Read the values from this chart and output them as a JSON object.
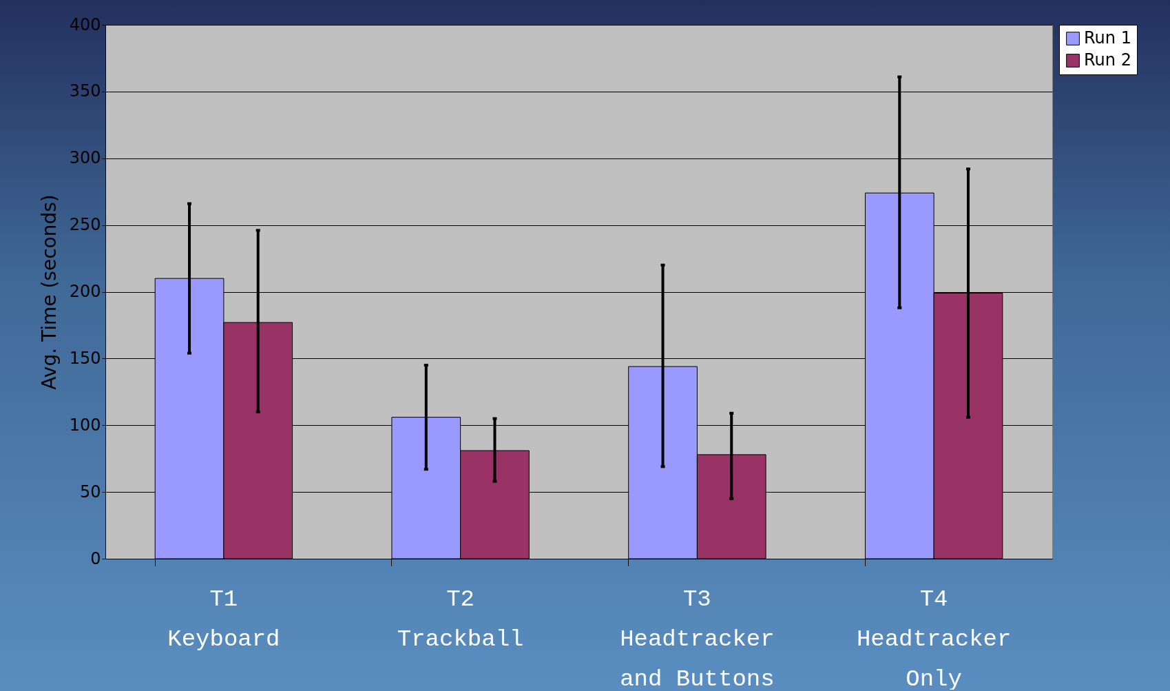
{
  "chart_data": {
    "type": "bar",
    "ylabel": "Avg. Time (seconds)",
    "categories": [
      "T1\nKeyboard",
      "T2\nTrackball",
      "T3\nHeadtracker\nand Buttons",
      "T4\nHeadtracker\nOnly"
    ],
    "series": [
      {
        "name": "Run 1",
        "color": "#9999ff",
        "values": [
          210,
          106,
          144,
          274
        ],
        "errors": [
          [
            154,
            266
          ],
          [
            67,
            145
          ],
          [
            69,
            220
          ],
          [
            188,
            361
          ]
        ]
      },
      {
        "name": "Run 2",
        "color": "#993366",
        "values": [
          177,
          81,
          78,
          199
        ],
        "errors": [
          [
            110,
            246
          ],
          [
            58,
            105
          ],
          [
            45,
            109
          ],
          [
            106,
            292
          ]
        ]
      }
    ],
    "ylim": [
      0,
      400
    ],
    "yticks": [
      0,
      50,
      100,
      150,
      200,
      250,
      300,
      350,
      400
    ],
    "grid": "y",
    "legend": "top right"
  }
}
